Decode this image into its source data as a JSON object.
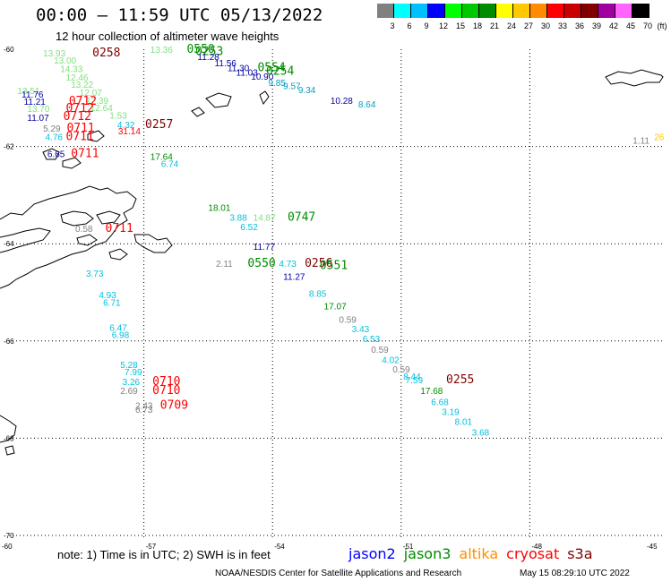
{
  "header": {
    "title": "00:00 – 11:59 UTC 05/13/2022",
    "subtitle": "12 hour collection of altimeter wave heights"
  },
  "colorbar": {
    "unit_label": "(ft)",
    "items": [
      {
        "label": "3",
        "color": "#808080"
      },
      {
        "label": "6",
        "color": "#00ffff"
      },
      {
        "label": "9",
        "color": "#00c0ff"
      },
      {
        "label": "12",
        "color": "#0000ff"
      },
      {
        "label": "15",
        "color": "#00ff00"
      },
      {
        "label": "18",
        "color": "#00c800"
      },
      {
        "label": "21",
        "color": "#008c00"
      },
      {
        "label": "24",
        "color": "#ffff00"
      },
      {
        "label": "27",
        "color": "#ffc800"
      },
      {
        "label": "30",
        "color": "#ff8c00"
      },
      {
        "label": "33",
        "color": "#ff0000"
      },
      {
        "label": "36",
        "color": "#c80000"
      },
      {
        "label": "39",
        "color": "#800000"
      },
      {
        "label": "42",
        "color": "#a000a0"
      },
      {
        "label": "45",
        "color": "#ff64ff"
      },
      {
        "label": "70",
        "color": "#000000"
      }
    ]
  },
  "axes": {
    "lat_labels": [
      "-60",
      "-62",
      "-64",
      "-66",
      "-68",
      "-70"
    ],
    "lon_labels": [
      "-60",
      "-57",
      "-54",
      "-51",
      "-48",
      "-45"
    ]
  },
  "observations": [
    {
      "t": "13.36",
      "c": "#7fe07f",
      "lon": -56.85,
      "lat": -60.0
    },
    {
      "t": "0550",
      "c": "#008c00",
      "lon": -56.0,
      "lat": -60.0
    },
    {
      "t": "0253",
      "c": "#008c00",
      "lon": -55.8,
      "lat": -60.05
    },
    {
      "t": "11.28",
      "c": "#0000a0",
      "lon": -55.75,
      "lat": -60.15
    },
    {
      "t": "11.56",
      "c": "#0000a0",
      "lon": -55.35,
      "lat": -60.28
    },
    {
      "t": "11.30",
      "c": "#0000a0",
      "lon": -55.05,
      "lat": -60.38
    },
    {
      "t": "0554",
      "c": "#008c00",
      "lon": -54.35,
      "lat": -60.38
    },
    {
      "t": "0254",
      "c": "#008c00",
      "lon": -54.15,
      "lat": -60.45
    },
    {
      "t": "11.03",
      "c": "#0000a0",
      "lon": -54.85,
      "lat": -60.47
    },
    {
      "t": "10.90",
      "c": "#0000a0",
      "lon": -54.5,
      "lat": -60.55
    },
    {
      "t": "9.85",
      "c": "#00a0c0",
      "lon": -54.1,
      "lat": -60.68
    },
    {
      "t": "9.57",
      "c": "#00a0c0",
      "lon": -53.75,
      "lat": -60.75
    },
    {
      "t": "9.34",
      "c": "#00a0c0",
      "lon": -53.4,
      "lat": -60.83
    },
    {
      "t": "10.28",
      "c": "#0000a0",
      "lon": -52.65,
      "lat": -61.05
    },
    {
      "t": "8.64",
      "c": "#00a0c0",
      "lon": -52.0,
      "lat": -61.12
    },
    {
      "t": "13.93",
      "c": "#7fe07f",
      "lon": -59.35,
      "lat": -60.07
    },
    {
      "t": "0258",
      "c": "#800000",
      "lon": -58.2,
      "lat": -60.07
    },
    {
      "t": "13.00",
      "c": "#7fe07f",
      "lon": -59.1,
      "lat": -60.22
    },
    {
      "t": "14.33",
      "c": "#7fe07f",
      "lon": -58.95,
      "lat": -60.4
    },
    {
      "t": "12.46",
      "c": "#7fe07f",
      "lon": -58.82,
      "lat": -60.57
    },
    {
      "t": "13.22",
      "c": "#7fe07f",
      "lon": -58.7,
      "lat": -60.72
    },
    {
      "t": "12.07",
      "c": "#7fe07f",
      "lon": -58.5,
      "lat": -60.88
    },
    {
      "t": "13.51",
      "c": "#7fe07f",
      "lon": -59.95,
      "lat": -60.85
    },
    {
      "t": "11.76",
      "c": "#0000a0",
      "lon": -59.85,
      "lat": -60.92
    },
    {
      "t": "12.39",
      "c": "#7fe07f",
      "lon": -58.35,
      "lat": -61.05
    },
    {
      "t": "11.21",
      "c": "#0000a0",
      "lon": -59.8,
      "lat": -61.07
    },
    {
      "t": "0712",
      "c": "#ff0000",
      "lon": -58.75,
      "lat": -61.07
    },
    {
      "t": "12.64",
      "c": "#7fe07f",
      "lon": -58.25,
      "lat": -61.2
    },
    {
      "t": "13.70",
      "c": "#7fe07f",
      "lon": -59.72,
      "lat": -61.22
    },
    {
      "t": "0712",
      "c": "#ff0000",
      "lon": -58.82,
      "lat": -61.22
    },
    {
      "t": "11.07",
      "c": "#0000a0",
      "lon": -59.72,
      "lat": -61.4
    },
    {
      "t": "0712",
      "c": "#ff0000",
      "lon": -58.88,
      "lat": -61.38
    },
    {
      "t": "1.53",
      "c": "#7fe07f",
      "lon": -57.8,
      "lat": -61.35
    },
    {
      "t": "4.32",
      "c": "#00c0e0",
      "lon": -57.62,
      "lat": -61.55
    },
    {
      "t": "0257",
      "c": "#800000",
      "lon": -56.97,
      "lat": -61.55
    },
    {
      "t": "5.29",
      "c": "#808080",
      "lon": -59.35,
      "lat": -61.62
    },
    {
      "t": "0711",
      "c": "#ff0000",
      "lon": -58.8,
      "lat": -61.62
    },
    {
      "t": "31.14",
      "c": "#ff0000",
      "lon": -57.6,
      "lat": -61.68
    },
    {
      "t": "4.76",
      "c": "#00c0e0",
      "lon": -59.3,
      "lat": -61.8
    },
    {
      "t": "0711",
      "c": "#ff0000",
      "lon": -58.82,
      "lat": -61.8
    },
    {
      "t": "6.65",
      "c": "#0000a0",
      "lon": -59.25,
      "lat": -62.15
    },
    {
      "t": "0711",
      "c": "#ff0000",
      "lon": -58.7,
      "lat": -62.15
    },
    {
      "t": "17.64",
      "c": "#008c00",
      "lon": -56.85,
      "lat": -62.2
    },
    {
      "t": "6.74",
      "c": "#00c0e0",
      "lon": -56.6,
      "lat": -62.35
    },
    {
      "t": "1.11",
      "c": "#808080",
      "lon": -45.6,
      "lat": -61.87
    },
    {
      "t": "26",
      "c": "#ffc800",
      "lon": -45.1,
      "lat": -61.8
    },
    {
      "t": "18.01",
      "c": "#008c00",
      "lon": -55.5,
      "lat": -63.25
    },
    {
      "t": "3.88",
      "c": "#00c0e0",
      "lon": -55.0,
      "lat": -63.45
    },
    {
      "t": "14.87",
      "c": "#7fe07f",
      "lon": -54.45,
      "lat": -63.45
    },
    {
      "t": "0747",
      "c": "#008c00",
      "lon": -53.65,
      "lat": -63.45
    },
    {
      "t": "6.52",
      "c": "#00c0e0",
      "lon": -54.75,
      "lat": -63.65
    },
    {
      "t": "0.58",
      "c": "#808080",
      "lon": -58.6,
      "lat": -63.68
    },
    {
      "t": "0711",
      "c": "#ff0000",
      "lon": -57.9,
      "lat": -63.68
    },
    {
      "t": "11.77",
      "c": "#0000a0",
      "lon": -54.45,
      "lat": -64.05
    },
    {
      "t": "2.11",
      "c": "#808080",
      "lon": -55.32,
      "lat": -64.4
    },
    {
      "t": "0550",
      "c": "#008c00",
      "lon": -54.58,
      "lat": -64.4
    },
    {
      "t": "4.73",
      "c": "#00c0e0",
      "lon": -53.85,
      "lat": -64.4
    },
    {
      "t": "0256",
      "c": "#800000",
      "lon": -53.25,
      "lat": -64.4
    },
    {
      "t": "0551",
      "c": "#008c00",
      "lon": -52.9,
      "lat": -64.45
    },
    {
      "t": "3.73",
      "c": "#00c0e0",
      "lon": -58.35,
      "lat": -64.6
    },
    {
      "t": "11.27",
      "c": "#0000a0",
      "lon": -53.75,
      "lat": -64.67
    },
    {
      "t": "8.85",
      "c": "#00c0e0",
      "lon": -53.15,
      "lat": -65.02
    },
    {
      "t": "4.93",
      "c": "#00c0e0",
      "lon": -58.05,
      "lat": -65.05
    },
    {
      "t": "6.71",
      "c": "#00c0e0",
      "lon": -57.95,
      "lat": -65.2
    },
    {
      "t": "17.07",
      "c": "#008c00",
      "lon": -52.8,
      "lat": -65.28
    },
    {
      "t": "0.59",
      "c": "#808080",
      "lon": -52.45,
      "lat": -65.55
    },
    {
      "t": "3.43",
      "c": "#00c0e0",
      "lon": -52.15,
      "lat": -65.75
    },
    {
      "t": "6.47",
      "c": "#00c0e0",
      "lon": -57.8,
      "lat": -65.72
    },
    {
      "t": "6.98",
      "c": "#00c0e0",
      "lon": -57.75,
      "lat": -65.87
    },
    {
      "t": "6.53",
      "c": "#00c0e0",
      "lon": -51.9,
      "lat": -65.95
    },
    {
      "t": "0.59",
      "c": "#808080",
      "lon": -51.7,
      "lat": -66.17
    },
    {
      "t": "4.02",
      "c": "#00c0e0",
      "lon": -51.45,
      "lat": -66.38
    },
    {
      "t": "5.28",
      "c": "#00c0e0",
      "lon": -57.55,
      "lat": -66.48
    },
    {
      "t": "0.59",
      "c": "#808080",
      "lon": -51.2,
      "lat": -66.57
    },
    {
      "t": "7.99",
      "c": "#00c0e0",
      "lon": -57.45,
      "lat": -66.63
    },
    {
      "t": "8.44",
      "c": "#00c0e0",
      "lon": -50.95,
      "lat": -66.72
    },
    {
      "t": "7.59",
      "c": "#00c0e0",
      "lon": -50.9,
      "lat": -66.8
    },
    {
      "t": "0255",
      "c": "#800000",
      "lon": -49.95,
      "lat": -66.8
    },
    {
      "t": "3.26",
      "c": "#00c0e0",
      "lon": -57.5,
      "lat": -66.83
    },
    {
      "t": "0710",
      "c": "#ff0000",
      "lon": -56.8,
      "lat": -66.83
    },
    {
      "t": "2.69",
      "c": "#808080",
      "lon": -57.55,
      "lat": -67.02
    },
    {
      "t": "0710",
      "c": "#ff0000",
      "lon": -56.8,
      "lat": -67.02
    },
    {
      "t": "17.68",
      "c": "#008c00",
      "lon": -50.55,
      "lat": -67.02
    },
    {
      "t": "6.68",
      "c": "#00c0e0",
      "lon": -50.3,
      "lat": -67.25
    },
    {
      "t": "2.43",
      "c": "#808080",
      "lon": -57.2,
      "lat": -67.32
    },
    {
      "t": "0709",
      "c": "#ff0000",
      "lon": -56.62,
      "lat": -67.32
    },
    {
      "t": "6.73",
      "c": "#808080",
      "lon": -57.2,
      "lat": -67.4
    },
    {
      "t": "3.19",
      "c": "#00c0e0",
      "lon": -50.05,
      "lat": -67.45
    },
    {
      "t": "8.01",
      "c": "#00c0e0",
      "lon": -49.75,
      "lat": -67.65
    },
    {
      "t": "3.68",
      "c": "#00c0e0",
      "lon": -49.35,
      "lat": -67.87
    }
  ],
  "note": "note:  1) Time is in UTC; 2) SWH is in feet",
  "missions": [
    {
      "name": "jason2",
      "color": "#0000ff"
    },
    {
      "name": "jason3",
      "color": "#008c00"
    },
    {
      "name": "altika",
      "color": "#ff8c00"
    },
    {
      "name": "cryosat",
      "color": "#ff0000"
    },
    {
      "name": "s3a",
      "color": "#800000"
    }
  ],
  "credit": "NOAA/NESDIS Center for Satellite Applications and Research",
  "credit_time": "May 15 08:29:10 UTC 2022"
}
